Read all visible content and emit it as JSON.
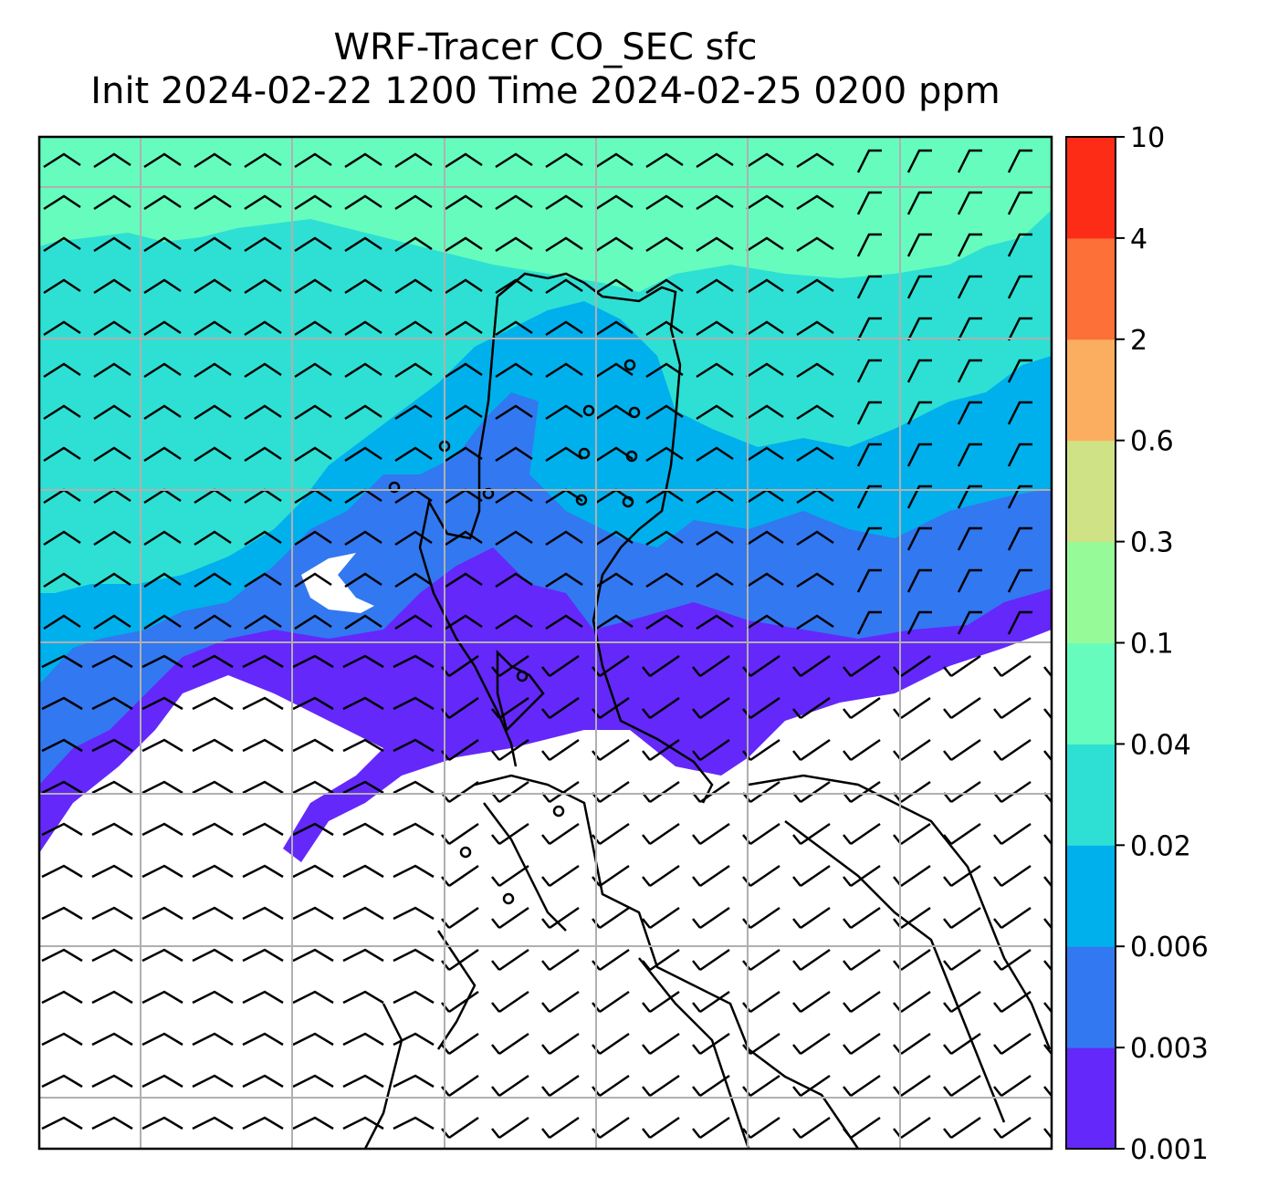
{
  "title": {
    "line1": "WRF-Tracer CO_SEC sfc",
    "line2": "Init 2024-02-22 1200 Time 2024-02-25 0200 ppm"
  },
  "colorbar": {
    "levels": [
      {
        "label": "0.001",
        "color": "#6428FA"
      },
      {
        "label": "0.003",
        "color": "#3278F0"
      },
      {
        "label": "0.006",
        "color": "#00B0EC"
      },
      {
        "label": "0.02",
        "color": "#2EE0D4"
      },
      {
        "label": "0.04",
        "color": "#66FCBE"
      },
      {
        "label": "0.1",
        "color": "#96FA98"
      },
      {
        "label": "0.3",
        "color": "#D0E286"
      },
      {
        "label": "0.6",
        "color": "#FCAE60"
      },
      {
        "label": "2",
        "color": "#FD7038"
      },
      {
        "label": "4",
        "color": "#FC2C16"
      },
      {
        "label": "10",
        "color": ""
      }
    ]
  },
  "colors": {
    "below_min": "#FFFFFF",
    "gridline": "#B0B0B0",
    "coastline": "#000000",
    "wind_barb": "#000000"
  },
  "map_features": {
    "wind_barbs": "north-westerly flow in north, south-westerly flow in south",
    "gridlines": true,
    "coastlines": true
  }
}
